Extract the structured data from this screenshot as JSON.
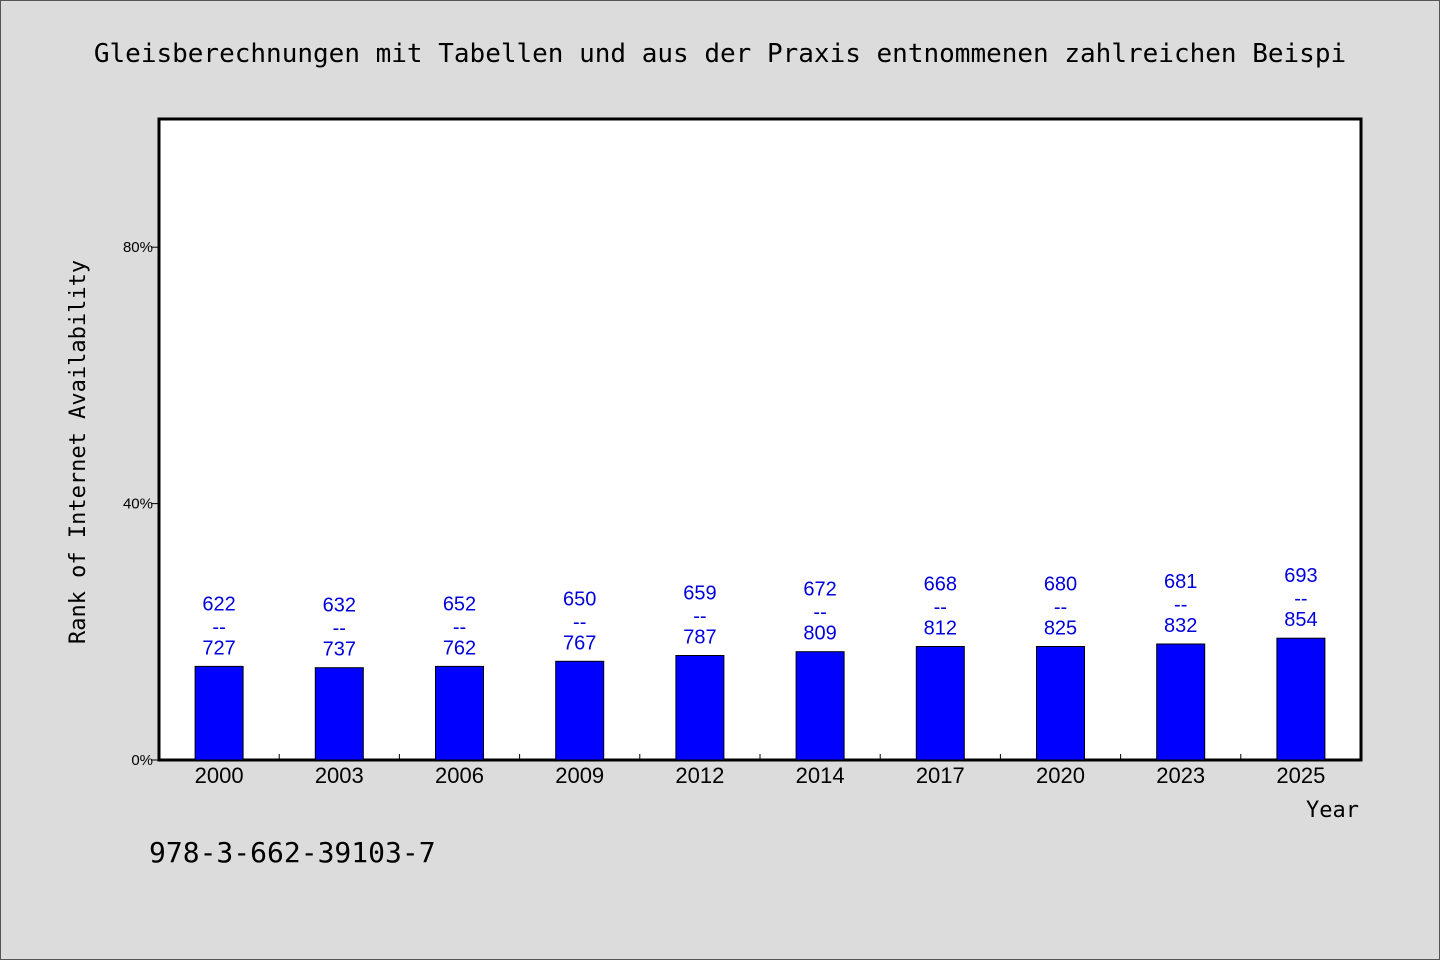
{
  "chart_data": {
    "type": "bar",
    "title": "Gleisberechnungen mit Tabellen und aus der Praxis entnommenen zahlreichen Beispi",
    "xlabel": "Year",
    "ylabel": "Rank of Internet Availability",
    "categories": [
      "2000",
      "2003",
      "2006",
      "2009",
      "2012",
      "2014",
      "2017",
      "2020",
      "2023",
      "2025"
    ],
    "values": [
      14.6,
      14.4,
      14.6,
      15.4,
      16.3,
      16.9,
      17.7,
      17.7,
      18.1,
      19.0
    ],
    "data_labels": [
      {
        "top": "622",
        "sep": "--",
        "bottom": "727"
      },
      {
        "top": "632",
        "sep": "--",
        "bottom": "737"
      },
      {
        "top": "652",
        "sep": "--",
        "bottom": "762"
      },
      {
        "top": "650",
        "sep": "--",
        "bottom": "767"
      },
      {
        "top": "659",
        "sep": "--",
        "bottom": "787"
      },
      {
        "top": "672",
        "sep": "--",
        "bottom": "809"
      },
      {
        "top": "668",
        "sep": "--",
        "bottom": "812"
      },
      {
        "top": "680",
        "sep": "--",
        "bottom": "825"
      },
      {
        "top": "681",
        "sep": "--",
        "bottom": "832"
      },
      {
        "top": "693",
        "sep": "--",
        "bottom": "854"
      }
    ],
    "yticks": [
      {
        "value": 0,
        "label": "0%"
      },
      {
        "value": 40,
        "label": "40%"
      },
      {
        "value": 80,
        "label": "80%"
      }
    ],
    "ylim": [
      0,
      100
    ],
    "grid": false,
    "legend": "none",
    "bar_color": "#0000ff",
    "label_color": "#0000dd"
  },
  "footer": {
    "isbn": "978-3-662-39103-7"
  }
}
